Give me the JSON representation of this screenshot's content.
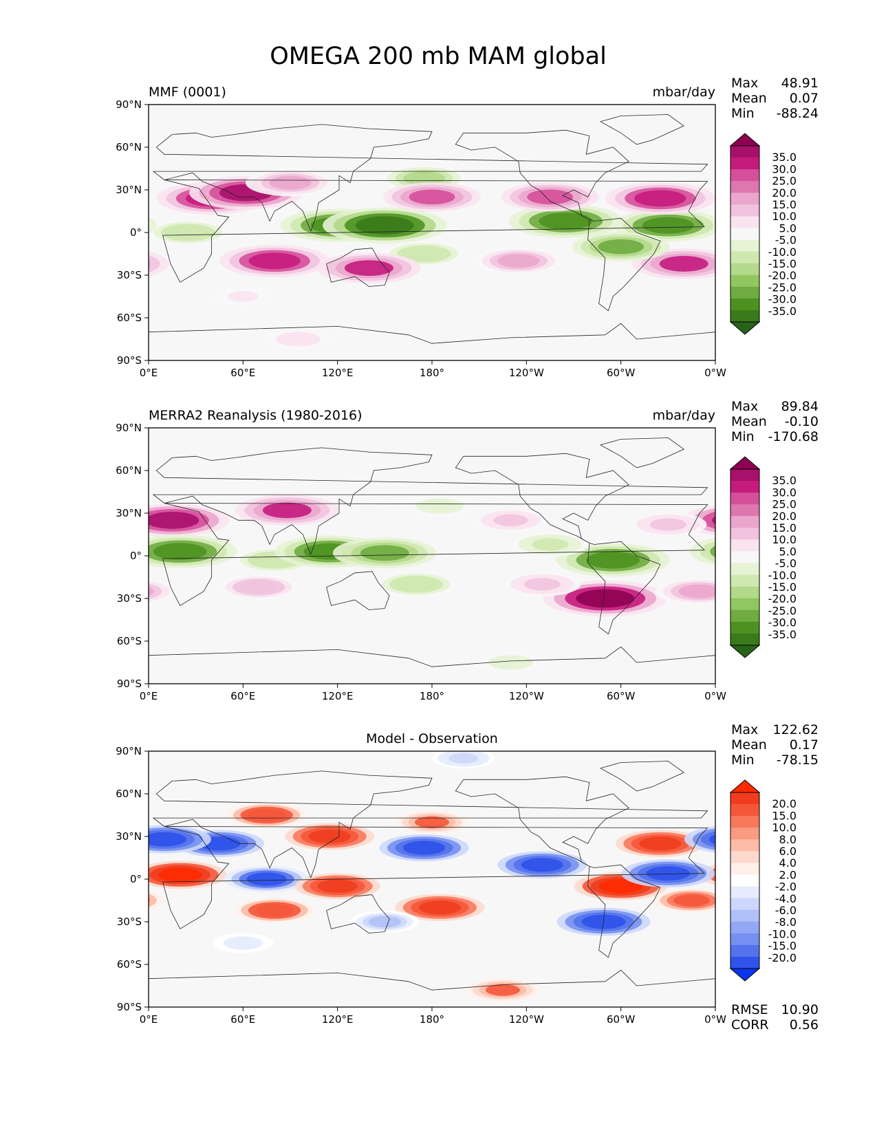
{
  "figure": {
    "title": "OMEGA 200 mb MAM global"
  },
  "chart_data": [
    {
      "type": "heatmap",
      "panel": "model",
      "left_title": "MMF (0001)",
      "center_title": "",
      "right_title": "mbar/day",
      "x_ticks": [
        "0°E",
        "60°E",
        "120°E",
        "180°",
        "120°W",
        "60°W",
        "0°W"
      ],
      "y_ticks": [
        "90°N",
        "60°N",
        "30°N",
        "0°",
        "30°S",
        "60°S",
        "90°S"
      ],
      "xlim": [
        0,
        360
      ],
      "ylim": [
        -90,
        90
      ],
      "stats": {
        "max_label": "Max",
        "max": "48.91",
        "mean_label": "Mean",
        "mean": "0.07",
        "min_label": "Min",
        "min": "-88.24"
      },
      "colorbar": {
        "levels": [
          "35.0",
          "30.0",
          "25.0",
          "20.0",
          "15.0",
          "10.0",
          "5.0",
          "-5.0",
          "-10.0",
          "-15.0",
          "-20.0",
          "-25.0",
          "-30.0",
          "-35.0"
        ],
        "colors": [
          "#8e0152",
          "#a8106b",
          "#c51b7d",
          "#d64f9a",
          "#de77ae",
          "#eba6cd",
          "#f1c3de",
          "#f9e3ef",
          "#f7f7f7",
          "#e6f3d4",
          "#cfe8b0",
          "#b3d98a",
          "#91c760",
          "#6fab40",
          "#4d9221",
          "#3a7a1a",
          "#276419"
        ]
      },
      "features": [
        {
          "name": "subtropical_N_Africa_Arabia",
          "lon": 40,
          "lat": 24,
          "value": 28
        },
        {
          "name": "arabian_sea_N",
          "lon": 62,
          "lat": 28,
          "value": 30
        },
        {
          "name": "asia_plateau",
          "lon": 90,
          "lat": 35,
          "value": 18
        },
        {
          "name": "south_indian_ocean",
          "lon": 80,
          "lat": -20,
          "value": 28
        },
        {
          "name": "tropical_africa",
          "lon": 25,
          "lat": 0,
          "value": -15
        },
        {
          "name": "maritime_continent",
          "lon": 120,
          "lat": 5,
          "value": -30
        },
        {
          "name": "west_pacific_warm_pool",
          "lon": 150,
          "lat": 5,
          "value": -35
        },
        {
          "name": "spcz",
          "lon": 175,
          "lat": -15,
          "value": -15
        },
        {
          "name": "north_pacific_jet",
          "lon": 175,
          "lat": 38,
          "value": -18
        },
        {
          "name": "north_pacific_subtropics",
          "lon": 180,
          "lat": 25,
          "value": 22
        },
        {
          "name": "australia",
          "lon": 140,
          "lat": -25,
          "value": 25
        },
        {
          "name": "itcz_east_pacific",
          "lon": 265,
          "lat": 8,
          "value": -30
        },
        {
          "name": "atlantic_itcz",
          "lon": 330,
          "lat": 5,
          "value": -28
        },
        {
          "name": "north_atlantic_subtropics",
          "lon": 325,
          "lat": 24,
          "value": 28
        },
        {
          "name": "south_atlantic",
          "lon": 340,
          "lat": -22,
          "value": 25
        },
        {
          "name": "amazon",
          "lon": 300,
          "lat": -10,
          "value": -22
        },
        {
          "name": "mexico_gulf",
          "lon": 255,
          "lat": 25,
          "value": 22
        },
        {
          "name": "south_pacific_subtropics",
          "lon": 235,
          "lat": -20,
          "value": 18
        },
        {
          "name": "southern_ocean_ne",
          "lon": 60,
          "lat": -45,
          "value": 6
        },
        {
          "name": "antarctic_rim",
          "lon": 95,
          "lat": -75,
          "value": 8
        }
      ]
    },
    {
      "type": "heatmap",
      "panel": "observation",
      "left_title": "MERRA2 Reanalysis (1980-2016)",
      "center_title": "",
      "right_title": "mbar/day",
      "x_ticks": [
        "0°E",
        "60°E",
        "120°E",
        "180°",
        "120°W",
        "60°W",
        "0°W"
      ],
      "y_ticks": [
        "90°N",
        "60°N",
        "30°N",
        "0°",
        "30°S",
        "60°S",
        "90°S"
      ],
      "xlim": [
        0,
        360
      ],
      "ylim": [
        -90,
        90
      ],
      "stats": {
        "max_label": "Max",
        "max": "89.84",
        "mean_label": "Mean",
        "mean": "-0.10",
        "min_label": "Min",
        "min": "-170.68"
      },
      "colorbar": {
        "levels": [
          "35.0",
          "30.0",
          "25.0",
          "20.0",
          "15.0",
          "10.0",
          "5.0",
          "-5.0",
          "-10.0",
          "-15.0",
          "-20.0",
          "-25.0",
          "-30.0",
          "-35.0"
        ],
        "colors": [
          "#8e0152",
          "#a8106b",
          "#c51b7d",
          "#d64f9a",
          "#de77ae",
          "#eba6cd",
          "#f1c3de",
          "#f9e3ef",
          "#f7f7f7",
          "#e6f3d4",
          "#cfe8b0",
          "#b3d98a",
          "#91c760",
          "#6fab40",
          "#4d9221",
          "#3a7a1a",
          "#276419"
        ]
      },
      "features": [
        {
          "name": "sahara",
          "lon": 15,
          "lat": 25,
          "value": 30
        },
        {
          "name": "himalaya_tibet",
          "lon": 88,
          "lat": 32,
          "value": 25
        },
        {
          "name": "tropical_africa",
          "lon": 20,
          "lat": 3,
          "value": -30
        },
        {
          "name": "indian_ocean_eq",
          "lon": 80,
          "lat": -3,
          "value": -15
        },
        {
          "name": "maritime_continent",
          "lon": 115,
          "lat": 3,
          "value": -28
        },
        {
          "name": "west_pacific",
          "lon": 150,
          "lat": 2,
          "value": -25
        },
        {
          "name": "spcz",
          "lon": 170,
          "lat": -20,
          "value": -15
        },
        {
          "name": "north_pacific_jet",
          "lon": 185,
          "lat": 35,
          "value": -10
        },
        {
          "name": "south_indian_ocean",
          "lon": 70,
          "lat": -22,
          "value": 14
        },
        {
          "name": "amazon",
          "lon": 295,
          "lat": -3,
          "value": -30
        },
        {
          "name": "andes",
          "lon": 290,
          "lat": -30,
          "value": 35
        },
        {
          "name": "eastern_pacific_itcz",
          "lon": 255,
          "lat": 8,
          "value": -12
        },
        {
          "name": "south_atlantic",
          "lon": 350,
          "lat": -25,
          "value": 18
        },
        {
          "name": "north_atlantic_subtropics",
          "lon": 330,
          "lat": 22,
          "value": 12
        },
        {
          "name": "south_pacific_east",
          "lon": 250,
          "lat": -20,
          "value": 12
        },
        {
          "name": "north_pacific_east",
          "lon": 230,
          "lat": 25,
          "value": 10
        },
        {
          "name": "antarctic_pacific_sector",
          "lon": 230,
          "lat": -75,
          "value": -8
        }
      ]
    },
    {
      "type": "heatmap",
      "panel": "difference",
      "left_title": "",
      "center_title": "Model - Observation",
      "right_title": "",
      "x_ticks": [
        "0°E",
        "60°E",
        "120°E",
        "180°",
        "120°W",
        "60°W",
        "0°W"
      ],
      "y_ticks": [
        "90°N",
        "60°N",
        "30°N",
        "0°",
        "30°S",
        "60°S",
        "90°S"
      ],
      "xlim": [
        0,
        360
      ],
      "ylim": [
        -90,
        90
      ],
      "stats": {
        "max_label": "Max",
        "max": "122.62",
        "mean_label": "Mean",
        "mean": "0.17",
        "min_label": "Min",
        "min": "-78.15"
      },
      "metrics": {
        "rmse_label": "RMSE",
        "rmse": "10.90",
        "corr_label": "CORR",
        "corr": "0.56"
      },
      "colorbar": {
        "levels": [
          "20.0",
          "15.0",
          "10.0",
          "8.0",
          "6.0",
          "4.0",
          "2.0",
          "-2.0",
          "-4.0",
          "-6.0",
          "-8.0",
          "-10.0",
          "-15.0",
          "-20.0"
        ],
        "colors": [
          "#ff2a00",
          "#f03c1e",
          "#f5563a",
          "#f8785c",
          "#fa9a80",
          "#fcbba7",
          "#fdd9cd",
          "#fff1ea",
          "#ffffff",
          "#e6ecfd",
          "#ccd7fb",
          "#b0c0f8",
          "#93a8f4",
          "#7590f0",
          "#5372ec",
          "#2e52ea",
          "#0a34f0"
        ]
      },
      "features": [
        {
          "name": "n_africa_arabia",
          "lon": 45,
          "lat": 25,
          "value": -18
        },
        {
          "name": "east_asia",
          "lon": 115,
          "lat": 30,
          "value": 18
        },
        {
          "name": "central_asia_north",
          "lon": 75,
          "lat": 45,
          "value": 14
        },
        {
          "name": "tropical_africa",
          "lon": 20,
          "lat": 3,
          "value": 20
        },
        {
          "name": "indian_ocean_tropics",
          "lon": 75,
          "lat": 0,
          "value": -16
        },
        {
          "name": "maritime_continent",
          "lon": 120,
          "lat": -5,
          "value": 16
        },
        {
          "name": "south_indian_ocean",
          "lon": 80,
          "lat": -22,
          "value": 14
        },
        {
          "name": "north_pacific_subtropics",
          "lon": 175,
          "lat": 22,
          "value": -18
        },
        {
          "name": "north_pacific_jet",
          "lon": 180,
          "lat": 40,
          "value": 10
        },
        {
          "name": "spcz_region",
          "lon": 185,
          "lat": -20,
          "value": 18
        },
        {
          "name": "amazon",
          "lon": 300,
          "lat": -5,
          "value": 20
        },
        {
          "name": "andes",
          "lon": 289,
          "lat": -30,
          "value": -20
        },
        {
          "name": "east_pacific_itcz",
          "lon": 250,
          "lat": 10,
          "value": -18
        },
        {
          "name": "atlantic_itcz",
          "lon": 330,
          "lat": 4,
          "value": -20
        },
        {
          "name": "north_atlantic_subtropics",
          "lon": 325,
          "lat": 25,
          "value": 18
        },
        {
          "name": "south_atlantic",
          "lon": 345,
          "lat": -15,
          "value": 12
        },
        {
          "name": "north_africa_west",
          "lon": 10,
          "lat": 28,
          "value": -20
        },
        {
          "name": "australia_east",
          "lon": 150,
          "lat": -30,
          "value": -8
        },
        {
          "name": "antarctic_pacific",
          "lon": 225,
          "lat": -78,
          "value": 10
        },
        {
          "name": "arctic_pacific",
          "lon": 200,
          "lat": 85,
          "value": -5
        },
        {
          "name": "southern_ocean_mid",
          "lon": 60,
          "lat": -45,
          "value": -4
        }
      ]
    }
  ]
}
